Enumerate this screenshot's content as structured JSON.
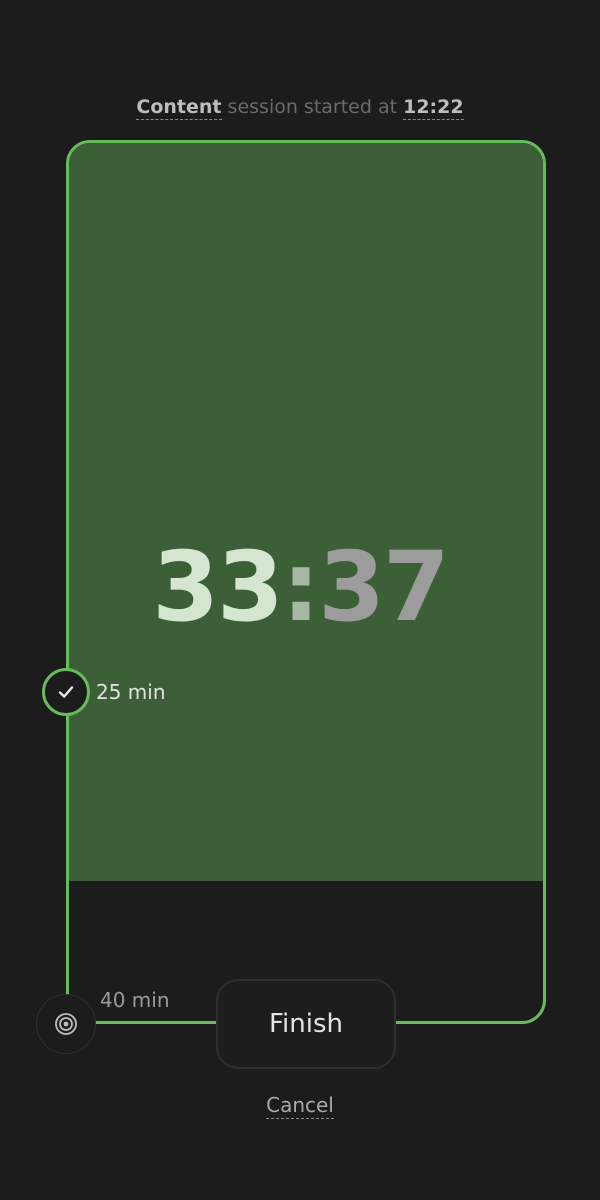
{
  "header": {
    "session_type": "Content",
    "middle_text": " session started at ",
    "start_time": "12:22"
  },
  "timer": {
    "minutes": "33",
    "separator": ":",
    "seconds": "37"
  },
  "progress": {
    "fraction_of_goal": 0.84
  },
  "milestones": {
    "completed_label": "25 min",
    "goal_label": "40 min"
  },
  "actions": {
    "finish_label": "Finish",
    "cancel_label": "Cancel"
  },
  "colors": {
    "accent_green": "#66bb5a",
    "fill_green": "#3c5f37",
    "background": "#1c1c1c"
  },
  "icons": {
    "completed_marker": "check-icon",
    "goal_marker": "target-icon"
  }
}
